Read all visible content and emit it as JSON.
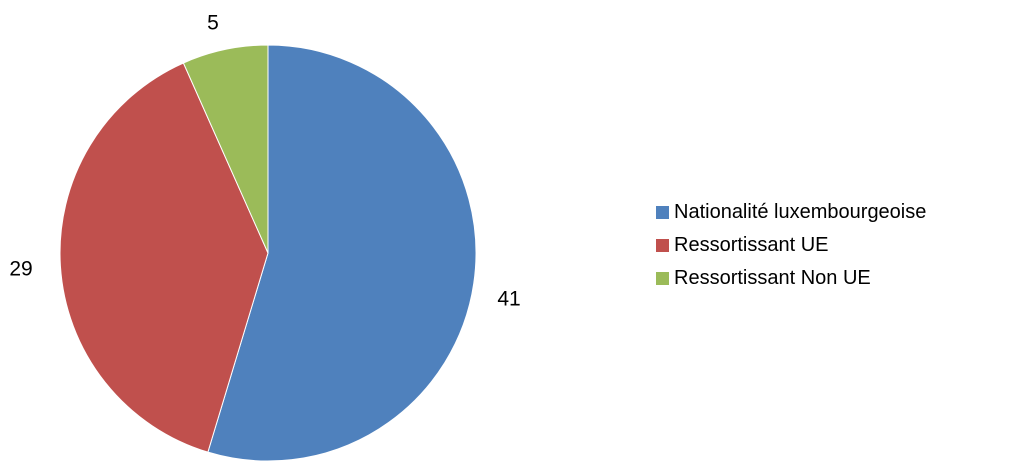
{
  "chart_data": {
    "type": "pie",
    "categories": [
      "Nationalité luxembourgeoise",
      "Ressortissant UE",
      "Ressortissant Non UE"
    ],
    "values": [
      41,
      29,
      5
    ],
    "data_labels": [
      "41",
      "29",
      "5"
    ],
    "colors": [
      "#4F81BD",
      "#C0504D",
      "#9BBB59"
    ],
    "start_angle_deg": 0,
    "direction": "clockwise",
    "legend_position": "right",
    "title": ""
  },
  "legend": {
    "items": [
      {
        "label": "Nationalité luxembourgeoise",
        "color": "#4F81BD"
      },
      {
        "label": "Ressortissant UE",
        "color": "#C0504D"
      },
      {
        "label": "Ressortissant Non UE",
        "color": "#9BBB59"
      }
    ]
  }
}
